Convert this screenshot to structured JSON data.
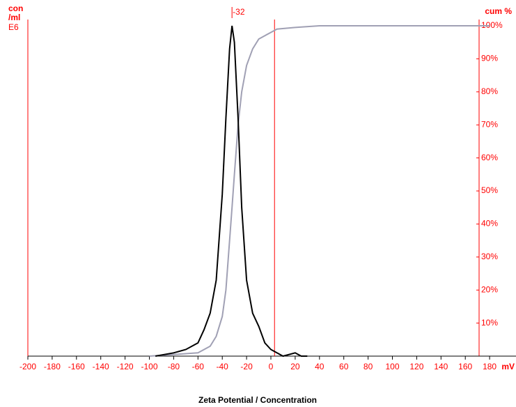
{
  "chart_data": {
    "type": "line",
    "title": "Zeta Potential / Concentration",
    "y_label": [
      "con",
      "/ml",
      "E6"
    ],
    "y2_label": "cum %",
    "x_unit": "mV",
    "xlim": [
      -200,
      200
    ],
    "xticks": [
      -200,
      -180,
      -160,
      -140,
      -120,
      -100,
      -80,
      -60,
      -40,
      -20,
      0,
      20,
      40,
      60,
      80,
      100,
      120,
      140,
      160,
      180
    ],
    "ylim": [
      0,
      1
    ],
    "y2lim": [
      0,
      100
    ],
    "y2ticks": [
      {
        "value": 10,
        "label": "10%"
      },
      {
        "value": 20,
        "label": "20%"
      },
      {
        "value": 30,
        "label": "30%"
      },
      {
        "value": 40,
        "label": "40%"
      },
      {
        "value": 50,
        "label": "50%"
      },
      {
        "value": 60,
        "label": "60%"
      },
      {
        "value": 70,
        "label": "70%"
      },
      {
        "value": 80,
        "label": "80%"
      },
      {
        "value": 90,
        "label": "90%"
      },
      {
        "value": 100,
        "label": "100%"
      }
    ],
    "peak": {
      "x": -32,
      "label": "-32"
    },
    "reference_line": 3,
    "axis_color": "#ff0000",
    "series": [
      {
        "color": "#000000",
        "x": [
          -95,
          -80,
          -70,
          -60,
          -55,
          -50,
          -45,
          -40,
          -37,
          -34,
          -32,
          -30,
          -27,
          -24,
          -20,
          -15,
          -10,
          -5,
          0,
          5,
          10,
          20,
          25,
          30
        ],
        "values": [
          0,
          0.01,
          0.02,
          0.04,
          0.08,
          0.13,
          0.23,
          0.49,
          0.72,
          0.93,
          1.0,
          0.95,
          0.72,
          0.45,
          0.23,
          0.13,
          0.09,
          0.04,
          0.02,
          0.01,
          0,
          0.01,
          0,
          0
        ]
      },
      {
        "color": "#a0a0b4",
        "axis": "y2",
        "x": [
          -100,
          -60,
          -50,
          -45,
          -40,
          -37,
          -34,
          -32,
          -30,
          -27,
          -24,
          -20,
          -15,
          -10,
          -5,
          0,
          5,
          20,
          40,
          180
        ],
        "values": [
          0,
          1,
          3,
          6,
          12,
          20,
          35,
          45,
          55,
          70,
          80,
          88,
          93,
          96,
          97,
          98,
          99,
          99.5,
          100,
          100
        ]
      }
    ]
  }
}
